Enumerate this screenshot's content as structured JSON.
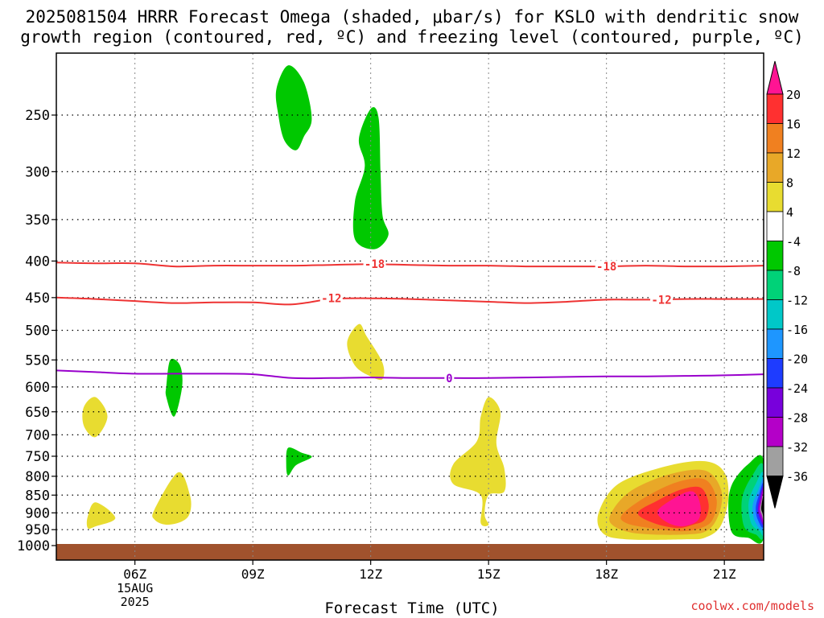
{
  "title_line1": "2025081504 HRRR Forecast Omega (shaded, μbar/s) for KSLO with dendritic snow",
  "title_line2": "growth region (contoured, red, ºC) and freezing level (contoured, purple, ºC)",
  "credit": "coolwx.com/models",
  "chart_data": {
    "type": "contour",
    "title": "2025081504 HRRR Forecast Omega (shaded, μbar/s) for KSLO with dendritic snow growth region (contoured, red, ºC) and freezing level (contoured, purple, ºC)",
    "xlabel": "Forecast Time (UTC)",
    "ylabel": "",
    "x_ticks": [
      {
        "hour": 6,
        "label": "06Z",
        "sublabel": [
          "15AUG",
          "2025"
        ]
      },
      {
        "hour": 9,
        "label": "09Z"
      },
      {
        "hour": 12,
        "label": "12Z"
      },
      {
        "hour": 15,
        "label": "15Z"
      },
      {
        "hour": 18,
        "label": "18Z"
      },
      {
        "hour": 21,
        "label": "21Z"
      }
    ],
    "xlim": [
      4,
      22
    ],
    "y_ticks": [
      250,
      300,
      350,
      400,
      450,
      500,
      550,
      600,
      650,
      700,
      750,
      800,
      850,
      900,
      950,
      1000
    ],
    "ylim": [
      200,
      1015
    ],
    "y_scale": "log-pressure",
    "grid": true,
    "ground_color": "#a0522d",
    "colorbar": {
      "labels": [
        "20",
        "16",
        "12",
        "8",
        "4",
        "-4",
        "-8",
        "-12",
        "-16",
        "-20",
        "-24",
        "-28",
        "-32",
        "-36"
      ],
      "colors": [
        "#ff1493",
        "#ff3030",
        "#f08020",
        "#e8a828",
        "#e8dc30",
        "#ffffff",
        "#00c800",
        "#00d278",
        "#00c8c8",
        "#1e96ff",
        "#1e3cff",
        "#7800dc",
        "#b400c8",
        "#a0a0a0",
        "#000000"
      ]
    },
    "contours": [
      {
        "name": "-18",
        "color": "#ee3333",
        "points": [
          [
            4,
            402
          ],
          [
            5,
            403
          ],
          [
            6,
            403
          ],
          [
            7,
            407
          ],
          [
            8,
            406
          ],
          [
            9,
            406
          ],
          [
            10,
            406
          ],
          [
            11,
            405
          ],
          [
            12,
            404
          ],
          [
            13,
            405
          ],
          [
            14,
            406
          ],
          [
            15,
            406
          ],
          [
            16,
            407
          ],
          [
            17,
            407
          ],
          [
            18,
            407
          ],
          [
            19,
            406
          ],
          [
            20,
            407
          ],
          [
            21,
            407
          ],
          [
            22,
            406
          ]
        ],
        "labels": [
          [
            12.1,
            404
          ],
          [
            18,
            407
          ]
        ]
      },
      {
        "name": "-12",
        "color": "#ee3333",
        "points": [
          [
            4,
            450
          ],
          [
            5,
            452
          ],
          [
            6,
            455
          ],
          [
            7,
            458
          ],
          [
            8,
            457
          ],
          [
            9,
            457
          ],
          [
            10,
            460
          ],
          [
            11,
            452
          ],
          [
            12,
            451
          ],
          [
            13,
            452
          ],
          [
            14,
            454
          ],
          [
            15,
            456
          ],
          [
            16,
            458
          ],
          [
            17,
            456
          ],
          [
            18,
            453
          ],
          [
            19,
            453
          ],
          [
            20,
            452
          ],
          [
            21,
            452
          ],
          [
            22,
            452
          ]
        ],
        "labels": [
          [
            11,
            451
          ],
          [
            19.4,
            453
          ]
        ]
      },
      {
        "name": "0",
        "color": "#9900cc",
        "points": [
          [
            4,
            569
          ],
          [
            5,
            572
          ],
          [
            6,
            575
          ],
          [
            7,
            575
          ],
          [
            8,
            575
          ],
          [
            9,
            576
          ],
          [
            10,
            583
          ],
          [
            11,
            583
          ],
          [
            12,
            582
          ],
          [
            13,
            583
          ],
          [
            14,
            583
          ],
          [
            15,
            583
          ],
          [
            16,
            582
          ],
          [
            17,
            581
          ],
          [
            18,
            580
          ],
          [
            19,
            580
          ],
          [
            20,
            579
          ],
          [
            21,
            578
          ],
          [
            22,
            576
          ]
        ],
        "labels": [
          [
            14,
            583
          ]
        ]
      }
    ],
    "omega_regions": [
      {
        "value": "-8",
        "color": "#00c800",
        "points": [
          [
            9.6,
            230
          ],
          [
            9.9,
            213
          ],
          [
            10.3,
            225
          ],
          [
            10.5,
            253
          ],
          [
            10.3,
            268
          ],
          [
            10.1,
            280
          ],
          [
            9.8,
            271
          ],
          [
            9.65,
            250
          ]
        ]
      },
      {
        "value": "-8",
        "color": "#00c800",
        "points": [
          [
            11.7,
            270
          ],
          [
            12.0,
            245
          ],
          [
            12.2,
            252
          ],
          [
            12.25,
            300
          ],
          [
            12.3,
            345
          ],
          [
            12.45,
            368
          ],
          [
            12.1,
            385
          ],
          [
            11.6,
            373
          ],
          [
            11.6,
            330
          ],
          [
            11.85,
            295
          ]
        ]
      },
      {
        "value": "-8",
        "color": "#00c800",
        "points": [
          [
            6.8,
            598
          ],
          [
            6.9,
            550
          ],
          [
            7.15,
            560
          ],
          [
            7.2,
            600
          ],
          [
            7.0,
            660
          ],
          [
            6.8,
            620
          ]
        ]
      },
      {
        "value": "-8",
        "color": "#00c800",
        "points": [
          [
            9.85,
            770
          ],
          [
            9.9,
            730
          ],
          [
            10.25,
            742
          ],
          [
            10.5,
            752
          ],
          [
            10.1,
            772
          ],
          [
            9.9,
            798
          ]
        ]
      },
      {
        "value": "4",
        "color": "#e8dc30",
        "points": [
          [
            11.4,
            520
          ],
          [
            11.7,
            490
          ],
          [
            11.9,
            510
          ],
          [
            12.3,
            555
          ],
          [
            12.3,
            585
          ],
          [
            12.0,
            580
          ],
          [
            11.6,
            560
          ]
        ]
      },
      {
        "value": "4",
        "color": "#e8dc30",
        "points": [
          [
            4.7,
            640
          ],
          [
            5.0,
            620
          ],
          [
            5.3,
            660
          ],
          [
            5.0,
            705
          ],
          [
            4.7,
            680
          ]
        ]
      },
      {
        "value": "4",
        "color": "#e8dc30",
        "points": [
          [
            4.8,
            910
          ],
          [
            5.0,
            870
          ],
          [
            5.5,
            915
          ],
          [
            5.0,
            940
          ],
          [
            4.8,
            945
          ]
        ]
      },
      {
        "value": "4",
        "color": "#e8dc30",
        "points": [
          [
            6.5,
            890
          ],
          [
            7.1,
            790
          ],
          [
            7.4,
            850
          ],
          [
            7.4,
            900
          ],
          [
            7.2,
            925
          ],
          [
            6.8,
            935
          ],
          [
            6.5,
            920
          ]
        ]
      },
      {
        "value": "4",
        "color": "#e8dc30",
        "points": [
          [
            15.0,
            620
          ],
          [
            15.3,
            650
          ],
          [
            15.2,
            720
          ],
          [
            15.4,
            780
          ],
          [
            15.4,
            840
          ],
          [
            15.0,
            850
          ],
          [
            14.9,
            905
          ],
          [
            15.0,
            935
          ],
          [
            14.8,
            930
          ],
          [
            14.8,
            850
          ],
          [
            14.1,
            820
          ],
          [
            14.1,
            770
          ],
          [
            14.7,
            715
          ],
          [
            14.8,
            660
          ]
        ]
      },
      {
        "value": "4",
        "color": "#e8dc30",
        "points": [
          [
            17.8,
            900
          ],
          [
            18.3,
            820
          ],
          [
            19.5,
            775
          ],
          [
            20.5,
            762
          ],
          [
            21.0,
            790
          ],
          [
            21.1,
            860
          ],
          [
            20.9,
            940
          ],
          [
            20.5,
            975
          ],
          [
            20.0,
            980
          ],
          [
            18.5,
            980
          ],
          [
            17.9,
            960
          ]
        ]
      },
      {
        "value": "8",
        "color": "#e8a828",
        "points": [
          [
            18.1,
            905
          ],
          [
            18.6,
            840
          ],
          [
            19.6,
            795
          ],
          [
            20.5,
            785
          ],
          [
            20.9,
            830
          ],
          [
            20.9,
            890
          ],
          [
            20.6,
            950
          ],
          [
            20.0,
            965
          ],
          [
            18.8,
            962
          ],
          [
            18.2,
            940
          ]
        ]
      },
      {
        "value": "12",
        "color": "#f08020",
        "points": [
          [
            18.4,
            905
          ],
          [
            19.0,
            855
          ],
          [
            19.8,
            815
          ],
          [
            20.5,
            808
          ],
          [
            20.8,
            860
          ],
          [
            20.7,
            920
          ],
          [
            20.4,
            945
          ],
          [
            19.9,
            955
          ],
          [
            19.1,
            945
          ],
          [
            18.5,
            930
          ]
        ]
      },
      {
        "value": "16",
        "color": "#ff3030",
        "points": [
          [
            18.8,
            900
          ],
          [
            19.3,
            865
          ],
          [
            19.9,
            835
          ],
          [
            20.4,
            830
          ],
          [
            20.6,
            875
          ],
          [
            20.5,
            920
          ],
          [
            20.2,
            935
          ],
          [
            19.8,
            945
          ],
          [
            19.2,
            930
          ]
        ]
      },
      {
        "value": "20",
        "color": "#ff1493",
        "points": [
          [
            19.3,
            895
          ],
          [
            19.7,
            860
          ],
          [
            20.1,
            840
          ],
          [
            20.3,
            850
          ],
          [
            20.4,
            890
          ],
          [
            20.3,
            925
          ],
          [
            19.9,
            940
          ],
          [
            19.5,
            925
          ]
        ]
      },
      {
        "value": "-8",
        "color": "#00c800",
        "points": [
          [
            22.0,
            760
          ],
          [
            21.6,
            770
          ],
          [
            21.2,
            820
          ],
          [
            21.1,
            880
          ],
          [
            21.2,
            960
          ],
          [
            21.6,
            975
          ],
          [
            22.0,
            975
          ]
        ]
      },
      {
        "value": "-12",
        "color": "#00d278",
        "points": [
          [
            22.0,
            775
          ],
          [
            21.7,
            800
          ],
          [
            21.45,
            860
          ],
          [
            21.5,
            940
          ],
          [
            21.8,
            965
          ],
          [
            22.0,
            965
          ]
        ]
      },
      {
        "value": "-16",
        "color": "#00c8c8",
        "points": [
          [
            22.0,
            795
          ],
          [
            21.8,
            820
          ],
          [
            21.62,
            870
          ],
          [
            21.68,
            930
          ],
          [
            21.9,
            955
          ],
          [
            22.0,
            955
          ]
        ]
      },
      {
        "value": "-20",
        "color": "#1e96ff",
        "points": [
          [
            22.0,
            810
          ],
          [
            21.85,
            840
          ],
          [
            21.72,
            880
          ],
          [
            21.78,
            925
          ],
          [
            22.0,
            945
          ]
        ]
      },
      {
        "value": "-24",
        "color": "#1e3cff",
        "points": [
          [
            22.0,
            820
          ],
          [
            21.88,
            850
          ],
          [
            21.8,
            885
          ],
          [
            21.85,
            920
          ],
          [
            22.0,
            938
          ]
        ]
      },
      {
        "value": "-28",
        "color": "#7800dc",
        "points": [
          [
            22.0,
            828
          ],
          [
            21.9,
            860
          ],
          [
            21.85,
            890
          ],
          [
            21.9,
            915
          ],
          [
            22.0,
            930
          ]
        ]
      },
      {
        "value": "-32",
        "color": "#b400c8",
        "points": [
          [
            22.0,
            835
          ],
          [
            21.92,
            865
          ],
          [
            21.88,
            890
          ],
          [
            21.93,
            910
          ],
          [
            22.0,
            925
          ]
        ]
      },
      {
        "value": "-36",
        "color": "#a0a0a0",
        "points": [
          [
            22.0,
            845
          ],
          [
            21.94,
            870
          ],
          [
            21.91,
            890
          ],
          [
            21.95,
            905
          ],
          [
            22.0,
            918
          ]
        ]
      },
      {
        "value": "<-36",
        "color": "#000000",
        "points": [
          [
            22.0,
            852
          ],
          [
            21.95,
            875
          ],
          [
            21.94,
            890
          ],
          [
            21.97,
            900
          ],
          [
            22.0,
            910
          ]
        ]
      }
    ]
  }
}
